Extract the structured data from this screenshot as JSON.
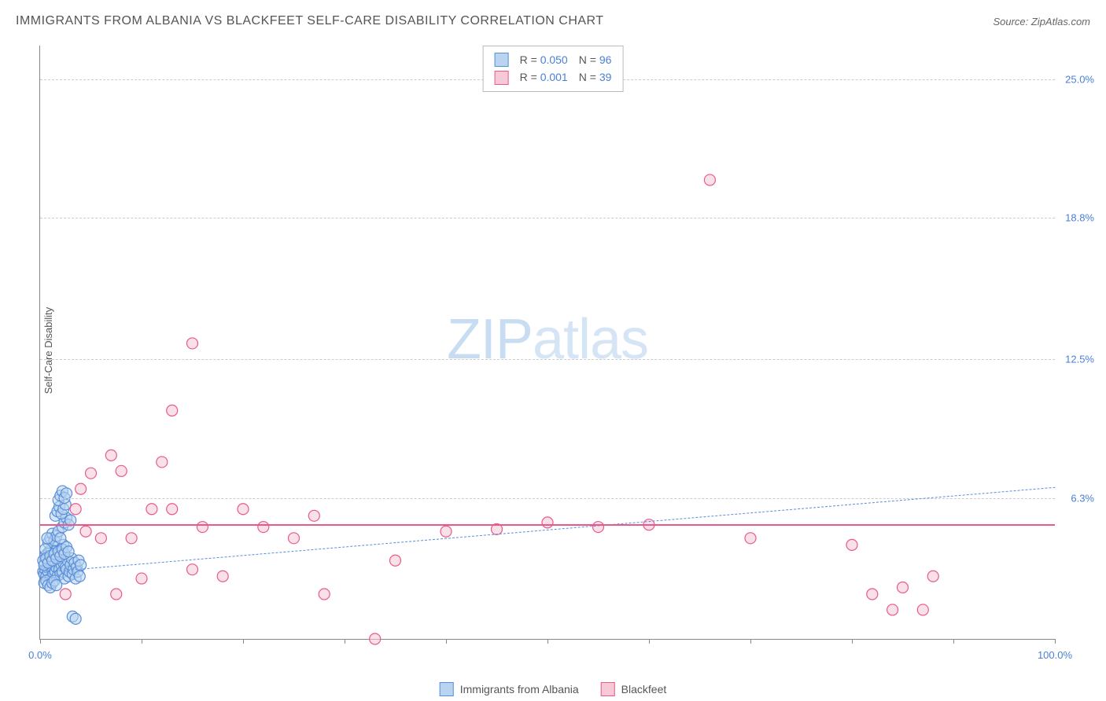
{
  "title": "IMMIGRANTS FROM ALBANIA VS BLACKFEET SELF-CARE DISABILITY CORRELATION CHART",
  "source": "Source: ZipAtlas.com",
  "y_axis_label": "Self-Care Disability",
  "watermark": {
    "zip": "ZIP",
    "atlas": "atlas"
  },
  "chart": {
    "type": "scatter",
    "xlim": [
      0,
      100
    ],
    "ylim": [
      0,
      26.5
    ],
    "x_ticks": [
      0,
      10,
      20,
      30,
      40,
      50,
      60,
      70,
      80,
      90,
      100
    ],
    "x_tick_labels": {
      "0": "0.0%",
      "100": "100.0%"
    },
    "y_gridlines": [
      6.3,
      12.5,
      18.8,
      25.0
    ],
    "y_tick_labels": [
      "6.3%",
      "12.5%",
      "18.8%",
      "25.0%"
    ],
    "grid_color": "#cccccc",
    "background_color": "#ffffff",
    "axis_color": "#888888",
    "tick_label_color": "#4a7fd8",
    "marker_radius": 7,
    "marker_stroke_width": 1.2,
    "series": [
      {
        "name": "Immigrants from Albania",
        "fill": "#b8d4f0",
        "stroke": "#5a8fd8",
        "fill_opacity": 0.55,
        "R": "0.050",
        "N": "96",
        "trend": {
          "y_at_x0": 3.0,
          "y_at_x100": 6.8,
          "style": "dashed",
          "color": "#5a8fd8",
          "width": 1.5
        },
        "points": [
          [
            0.3,
            3.0
          ],
          [
            0.4,
            2.9
          ],
          [
            0.5,
            3.1
          ],
          [
            0.6,
            2.8
          ],
          [
            0.7,
            3.2
          ],
          [
            0.8,
            3.0
          ],
          [
            0.9,
            3.3
          ],
          [
            1.0,
            2.7
          ],
          [
            1.1,
            3.4
          ],
          [
            1.2,
            3.1
          ],
          [
            1.3,
            2.9
          ],
          [
            1.4,
            3.5
          ],
          [
            1.5,
            3.0
          ],
          [
            1.6,
            3.2
          ],
          [
            1.7,
            2.8
          ],
          [
            1.8,
            3.6
          ],
          [
            1.9,
            3.1
          ],
          [
            2.0,
            2.9
          ],
          [
            2.1,
            3.3
          ],
          [
            2.2,
            3.0
          ],
          [
            2.3,
            3.4
          ],
          [
            2.4,
            2.7
          ],
          [
            2.5,
            3.2
          ],
          [
            2.6,
            3.1
          ],
          [
            2.7,
            3.5
          ],
          [
            2.8,
            2.8
          ],
          [
            2.9,
            3.0
          ],
          [
            3.0,
            3.3
          ],
          [
            3.1,
            3.6
          ],
          [
            3.2,
            2.9
          ],
          [
            3.3,
            3.1
          ],
          [
            3.4,
            3.4
          ],
          [
            3.5,
            2.7
          ],
          [
            3.6,
            3.2
          ],
          [
            3.7,
            3.0
          ],
          [
            3.8,
            3.5
          ],
          [
            3.9,
            2.8
          ],
          [
            4.0,
            3.3
          ],
          [
            0.4,
            2.5
          ],
          [
            0.6,
            2.6
          ],
          [
            0.8,
            2.4
          ],
          [
            1.0,
            2.3
          ],
          [
            1.2,
            2.5
          ],
          [
            1.4,
            2.6
          ],
          [
            1.6,
            2.4
          ],
          [
            0.5,
            3.7
          ],
          [
            0.7,
            3.8
          ],
          [
            0.9,
            3.9
          ],
          [
            1.1,
            4.0
          ],
          [
            1.3,
            3.7
          ],
          [
            1.5,
            3.9
          ],
          [
            1.7,
            4.1
          ],
          [
            1.9,
            3.8
          ],
          [
            2.1,
            4.0
          ],
          [
            2.3,
            4.2
          ],
          [
            0.8,
            4.3
          ],
          [
            1.0,
            4.5
          ],
          [
            1.2,
            4.7
          ],
          [
            1.4,
            4.4
          ],
          [
            1.6,
            4.6
          ],
          [
            1.8,
            4.8
          ],
          [
            2.0,
            4.5
          ],
          [
            2.2,
            5.0
          ],
          [
            2.4,
            5.2
          ],
          [
            2.6,
            5.4
          ],
          [
            2.8,
            5.1
          ],
          [
            3.0,
            5.3
          ],
          [
            1.5,
            5.5
          ],
          [
            1.7,
            5.7
          ],
          [
            1.9,
            5.9
          ],
          [
            2.1,
            5.6
          ],
          [
            2.3,
            5.8
          ],
          [
            2.5,
            6.0
          ],
          [
            1.8,
            6.2
          ],
          [
            2.0,
            6.4
          ],
          [
            2.2,
            6.6
          ],
          [
            2.4,
            6.3
          ],
          [
            2.6,
            6.5
          ],
          [
            3.2,
            1.0
          ],
          [
            3.5,
            0.9
          ],
          [
            0.3,
            3.5
          ],
          [
            0.5,
            4.0
          ],
          [
            0.7,
            4.5
          ],
          [
            0.4,
            3.3
          ],
          [
            0.6,
            3.6
          ],
          [
            0.8,
            3.4
          ],
          [
            1.0,
            3.7
          ],
          [
            1.2,
            3.5
          ],
          [
            1.4,
            3.8
          ],
          [
            1.6,
            3.6
          ],
          [
            1.8,
            3.9
          ],
          [
            2.0,
            3.7
          ],
          [
            2.2,
            4.0
          ],
          [
            2.4,
            3.8
          ],
          [
            2.6,
            4.1
          ],
          [
            2.8,
            3.9
          ]
        ]
      },
      {
        "name": "Blackfeet",
        "fill": "#f5c9d6",
        "stroke": "#e85a8a",
        "fill_opacity": 0.55,
        "R": "0.001",
        "N": "39",
        "trend": {
          "y_at_x0": 5.1,
          "y_at_x100": 5.1,
          "style": "solid",
          "color": "#e85a8a",
          "width": 2
        },
        "points": [
          [
            2.5,
            2.0
          ],
          [
            3.5,
            5.8
          ],
          [
            4.0,
            6.7
          ],
          [
            4.5,
            4.8
          ],
          [
            5.0,
            7.4
          ],
          [
            6.0,
            4.5
          ],
          [
            7.0,
            8.2
          ],
          [
            7.5,
            2.0
          ],
          [
            8.0,
            7.5
          ],
          [
            9.0,
            4.5
          ],
          [
            10.0,
            2.7
          ],
          [
            11.0,
            5.8
          ],
          [
            12.0,
            7.9
          ],
          [
            13.0,
            10.2
          ],
          [
            13.0,
            5.8
          ],
          [
            15.0,
            3.1
          ],
          [
            15.0,
            13.2
          ],
          [
            16.0,
            5.0
          ],
          [
            18.0,
            2.8
          ],
          [
            20.0,
            5.8
          ],
          [
            22.0,
            5.0
          ],
          [
            25.0,
            4.5
          ],
          [
            28.0,
            2.0
          ],
          [
            27.0,
            5.5
          ],
          [
            33.0,
            0.0
          ],
          [
            66.0,
            20.5
          ],
          [
            80.0,
            4.2
          ],
          [
            82.0,
            2.0
          ],
          [
            84.0,
            1.3
          ],
          [
            85.0,
            2.3
          ],
          [
            87.0,
            1.3
          ],
          [
            88.0,
            2.8
          ],
          [
            45.0,
            4.9
          ],
          [
            50.0,
            5.2
          ],
          [
            35.0,
            3.5
          ],
          [
            40.0,
            4.8
          ],
          [
            55.0,
            5.0
          ],
          [
            60.0,
            5.1
          ],
          [
            70.0,
            4.5
          ]
        ]
      }
    ]
  },
  "legend_top": {
    "R_label": "R =",
    "N_label": "N ="
  },
  "legend_bottom": [
    {
      "label": "Immigrants from Albania",
      "fill": "#b8d4f0",
      "stroke": "#5a8fd8"
    },
    {
      "label": "Blackfeet",
      "fill": "#f5c9d6",
      "stroke": "#e85a8a"
    }
  ]
}
